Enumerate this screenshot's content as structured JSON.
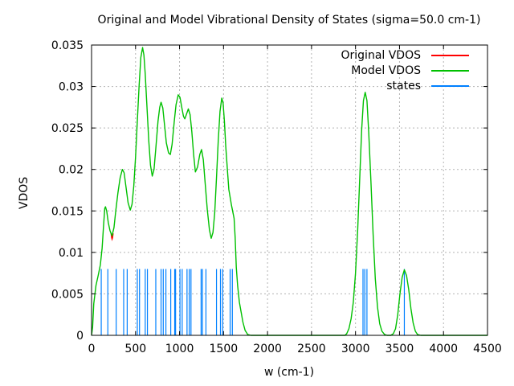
{
  "title": "Original and Model Vibrational Density of States (sigma=50.0 cm-1)",
  "xlabel": "w (cm-1)",
  "ylabel": "VDOS",
  "legend": {
    "position": "top-right-inside",
    "items": [
      {
        "label": "Original VDOS",
        "color": "#ff0000"
      },
      {
        "label": "Model VDOS",
        "color": "#00c000"
      },
      {
        "label": "states",
        "color": "#0080ff"
      }
    ]
  },
  "colors": {
    "original_vdos": "#ff0000",
    "model_vdos": "#00c000",
    "states": "#0080ff",
    "grid": "#b4b4b4",
    "border": "#000000"
  },
  "chart_data": {
    "type": "line",
    "title": "Original and Model Vibrational Density of States (sigma=50.0 cm-1)",
    "xlabel": "w (cm-1)",
    "ylabel": "VDOS",
    "xlim": [
      0,
      4500
    ],
    "ylim": [
      0,
      0.035
    ],
    "grid": true,
    "legend_position": "top-right",
    "xticks": [
      {
        "v": 0,
        "label": "0"
      },
      {
        "v": 500,
        "label": "500"
      },
      {
        "v": 1000,
        "label": "1000"
      },
      {
        "v": 1500,
        "label": "1500"
      },
      {
        "v": 2000,
        "label": "2000"
      },
      {
        "v": 2500,
        "label": "2500"
      },
      {
        "v": 3000,
        "label": "3000"
      },
      {
        "v": 3500,
        "label": "3500"
      },
      {
        "v": 4000,
        "label": "4000"
      },
      {
        "v": 4500,
        "label": "4500"
      }
    ],
    "yticks": [
      {
        "v": 0,
        "label": "0"
      },
      {
        "v": 0.005,
        "label": "0.005"
      },
      {
        "v": 0.01,
        "label": "0.01"
      },
      {
        "v": 0.015,
        "label": "0.015"
      },
      {
        "v": 0.02,
        "label": "0.02"
      },
      {
        "v": 0.025,
        "label": "0.025"
      },
      {
        "v": 0.03,
        "label": "0.03"
      },
      {
        "v": 0.035,
        "label": "0.035"
      }
    ],
    "series": [
      {
        "name": "Original VDOS",
        "type": "line",
        "color": "#ff0000",
        "note": "nearly identical to Model VDOS and hidden beneath it; visible only as a tiny sliver at the local minimum near w=233",
        "points": [
          [
            222,
            0.0123
          ],
          [
            228,
            0.0118
          ],
          [
            233,
            0.0116
          ],
          [
            239,
            0.0118
          ],
          [
            245,
            0.0123
          ]
        ]
      },
      {
        "name": "Model VDOS",
        "type": "line",
        "color": "#00c000",
        "points": [
          [
            0,
            0
          ],
          [
            12,
            0.001
          ],
          [
            25,
            0.0038
          ],
          [
            50,
            0.006
          ],
          [
            75,
            0.0072
          ],
          [
            100,
            0.0085
          ],
          [
            120,
            0.0105
          ],
          [
            135,
            0.013
          ],
          [
            150,
            0.0153
          ],
          [
            158,
            0.0155
          ],
          [
            172,
            0.015
          ],
          [
            190,
            0.0136
          ],
          [
            210,
            0.0126
          ],
          [
            233,
            0.012
          ],
          [
            255,
            0.013
          ],
          [
            275,
            0.015
          ],
          [
            300,
            0.0172
          ],
          [
            325,
            0.019
          ],
          [
            350,
            0.02
          ],
          [
            370,
            0.0196
          ],
          [
            390,
            0.018
          ],
          [
            415,
            0.016
          ],
          [
            440,
            0.0151
          ],
          [
            460,
            0.0158
          ],
          [
            480,
            0.018
          ],
          [
            500,
            0.0215
          ],
          [
            520,
            0.0258
          ],
          [
            540,
            0.03
          ],
          [
            560,
            0.0335
          ],
          [
            580,
            0.0347
          ],
          [
            595,
            0.0338
          ],
          [
            610,
            0.0315
          ],
          [
            630,
            0.0275
          ],
          [
            650,
            0.0235
          ],
          [
            670,
            0.0205
          ],
          [
            690,
            0.0192
          ],
          [
            710,
            0.02
          ],
          [
            730,
            0.0225
          ],
          [
            755,
            0.0258
          ],
          [
            775,
            0.0275
          ],
          [
            790,
            0.0281
          ],
          [
            810,
            0.0274
          ],
          [
            830,
            0.0253
          ],
          [
            850,
            0.0232
          ],
          [
            875,
            0.022
          ],
          [
            895,
            0.0218
          ],
          [
            915,
            0.023
          ],
          [
            940,
            0.0258
          ],
          [
            960,
            0.0278
          ],
          [
            985,
            0.029
          ],
          [
            1005,
            0.0287
          ],
          [
            1025,
            0.0275
          ],
          [
            1045,
            0.0264
          ],
          [
            1060,
            0.0261
          ],
          [
            1080,
            0.0267
          ],
          [
            1100,
            0.0273
          ],
          [
            1120,
            0.0266
          ],
          [
            1140,
            0.0245
          ],
          [
            1160,
            0.0218
          ],
          [
            1180,
            0.0197
          ],
          [
            1205,
            0.0203
          ],
          [
            1230,
            0.0218
          ],
          [
            1250,
            0.0224
          ],
          [
            1270,
            0.0212
          ],
          [
            1290,
            0.0185
          ],
          [
            1315,
            0.0152
          ],
          [
            1340,
            0.0127
          ],
          [
            1360,
            0.0117
          ],
          [
            1380,
            0.0124
          ],
          [
            1400,
            0.0148
          ],
          [
            1420,
            0.019
          ],
          [
            1440,
            0.0235
          ],
          [
            1460,
            0.027
          ],
          [
            1480,
            0.0286
          ],
          [
            1495,
            0.028
          ],
          [
            1510,
            0.0258
          ],
          [
            1525,
            0.0228
          ],
          [
            1545,
            0.0198
          ],
          [
            1560,
            0.0176
          ],
          [
            1590,
            0.0157
          ],
          [
            1620,
            0.0141
          ],
          [
            1632,
            0.0118
          ],
          [
            1645,
            0.0082
          ],
          [
            1660,
            0.006
          ],
          [
            1680,
            0.004
          ],
          [
            1700,
            0.0028
          ],
          [
            1720,
            0.0016
          ],
          [
            1745,
            0.0006
          ],
          [
            1775,
            0.0001
          ],
          [
            1810,
            0
          ],
          [
            2880,
            0
          ],
          [
            2900,
            0.0002
          ],
          [
            2925,
            0.0008
          ],
          [
            2950,
            0.002
          ],
          [
            2975,
            0.004
          ],
          [
            3000,
            0.0075
          ],
          [
            3025,
            0.0128
          ],
          [
            3050,
            0.0195
          ],
          [
            3070,
            0.0248
          ],
          [
            3090,
            0.0283
          ],
          [
            3110,
            0.0293
          ],
          [
            3130,
            0.0283
          ],
          [
            3150,
            0.0245
          ],
          [
            3175,
            0.0186
          ],
          [
            3200,
            0.0122
          ],
          [
            3225,
            0.0068
          ],
          [
            3250,
            0.0034
          ],
          [
            3275,
            0.0014
          ],
          [
            3300,
            0.0005
          ],
          [
            3330,
            0.0001
          ],
          [
            3360,
            0
          ],
          [
            3400,
            0
          ],
          [
            3430,
            0.0002
          ],
          [
            3455,
            0.0008
          ],
          [
            3480,
            0.0025
          ],
          [
            3505,
            0.005
          ],
          [
            3530,
            0.007
          ],
          [
            3555,
            0.0079
          ],
          [
            3580,
            0.0072
          ],
          [
            3605,
            0.0055
          ],
          [
            3630,
            0.0032
          ],
          [
            3655,
            0.0015
          ],
          [
            3680,
            0.0005
          ],
          [
            3705,
            0.0001
          ],
          [
            3740,
            0
          ],
          [
            4500,
            0
          ]
        ]
      },
      {
        "name": "states",
        "type": "impulses",
        "color": "#0080ff",
        "height": 0.008,
        "x": [
          110,
          185,
          280,
          365,
          405,
          520,
          545,
          610,
          635,
          730,
          790,
          815,
          845,
          900,
          945,
          955,
          1005,
          1030,
          1085,
          1110,
          1130,
          1245,
          1260,
          1300,
          1420,
          1465,
          1490,
          1575,
          1600,
          3085,
          3105,
          3130,
          3555
        ]
      }
    ]
  }
}
